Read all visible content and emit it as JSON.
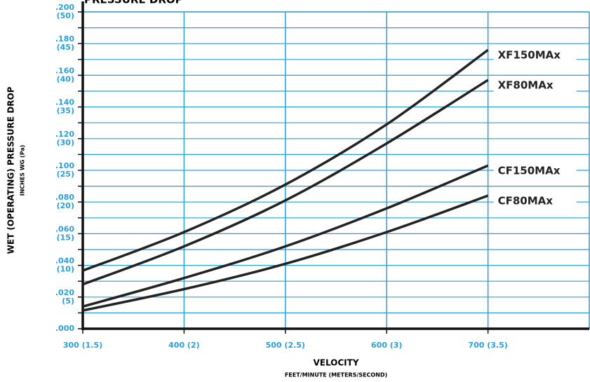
{
  "chart_data": {
    "type": "line",
    "title": "PRESSURE DROP",
    "y_label": "WET (OPERATING) PRESSURE DROP",
    "y_sublabel": "INCHES WG (Pa)",
    "x_label": "VELOCITY",
    "x_sublabel": "FEET/MINUTE (METERS/SECOND)",
    "x": [
      300,
      400,
      500,
      600,
      700
    ],
    "xlim": [
      300,
      800
    ],
    "xticks": [
      {
        "value": 300,
        "label": "300 (1.5)"
      },
      {
        "value": 400,
        "label": "400 (2)"
      },
      {
        "value": 500,
        "label": "500 (2.5)"
      },
      {
        "value": 600,
        "label": "600 (3)"
      },
      {
        "value": 700,
        "label": "700 (3.5)"
      }
    ],
    "ylim": [
      0,
      0.2
    ],
    "yticks": [
      {
        "value": 0,
        "label": ".000"
      },
      {
        "value": 0.02,
        "label": ".020"
      },
      {
        "value": 0.04,
        "label": ".040"
      },
      {
        "value": 0.06,
        "label": ".060"
      },
      {
        "value": 0.08,
        "label": ".080"
      },
      {
        "value": 0.1,
        "label": ".100"
      },
      {
        "value": 0.12,
        "label": ".120"
      },
      {
        "value": 0.14,
        "label": ".140"
      },
      {
        "value": 0.16,
        "label": ".160"
      },
      {
        "value": 0.18,
        "label": ".180"
      },
      {
        "value": 0.2,
        "label": ".200"
      }
    ],
    "ytick_sublabels": [
      null,
      "(5)",
      "(10)",
      "(15)",
      "(20)",
      "(25)",
      "(30)",
      "(35)",
      "(40)",
      "(45)",
      "(50)"
    ],
    "y_minor_ticks": [
      0.01,
      0.03,
      0.05,
      0.07,
      0.09,
      0.11,
      0.13,
      0.15,
      0.17,
      0.19
    ],
    "grid": true,
    "grid_color": "#2a9fd8",
    "series": [
      {
        "name": "XF150MAx",
        "color": "#222222",
        "values": [
          0.0367,
          0.061,
          0.091,
          0.129,
          0.176
        ]
      },
      {
        "name": "XF80MAx",
        "color": "#222222",
        "values": [
          0.028,
          0.052,
          0.081,
          0.117,
          0.157
        ]
      },
      {
        "name": "CF150MAx",
        "color": "#222222",
        "values": [
          0.014,
          0.032,
          0.052,
          0.076,
          0.103
        ]
      },
      {
        "name": "CF80MAx",
        "color": "#222222",
        "values": [
          0.0115,
          0.025,
          0.041,
          0.061,
          0.084
        ]
      }
    ]
  }
}
